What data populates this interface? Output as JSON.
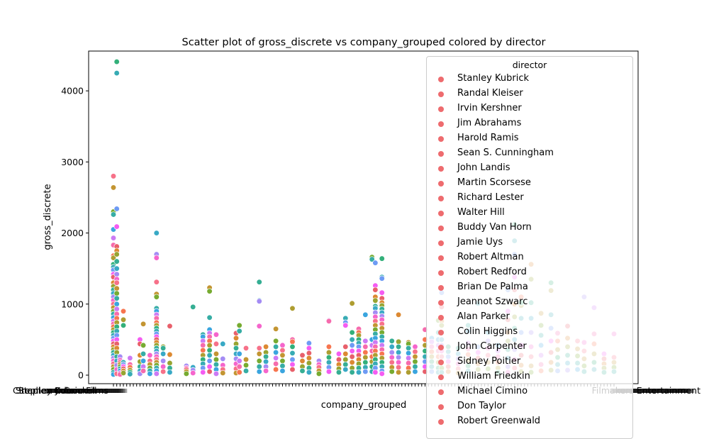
{
  "chart_data": {
    "type": "scatter",
    "title": "Scatter plot of gross_discrete vs company_grouped colored by director",
    "xlabel": "company_grouped",
    "ylabel": "gross_discrete",
    "ylim": [
      -120,
      4560
    ],
    "yticks": [
      0,
      1000,
      2000,
      3000,
      4000
    ],
    "xtick_labels_visible": [
      "Cineplex Odeon Films",
      "Stephen J. Cannell",
      "Stanley Kubrick",
      "Filmakers Entertainment"
    ],
    "grid": false,
    "legend": {
      "title": "director",
      "placement": "upper-right",
      "entries": [
        "Stanley Kubrick",
        "Randal Kleiser",
        "Irvin Kershner",
        "Jim Abrahams",
        "Harold Ramis",
        "Sean S. Cunningham",
        "John Landis",
        "Martin Scorsese",
        "Richard Lester",
        "Walter Hill",
        "Buddy Van Horn",
        "Jamie Uys",
        "Robert Altman",
        "Robert Redford",
        "Brian De Palma",
        "Jeannot Szwarc",
        "Alan Parker",
        "Colin Higgins",
        "John Carpenter",
        "Sidney Poitier",
        "William Friedkin",
        "Michael Cimino",
        "Don Taylor",
        "Robert Greenwald"
      ],
      "marker_color": "#ee6b6e"
    },
    "series": [
      {
        "x": 0,
        "y": [
          2800,
          2640,
          2300,
          2260,
          2050,
          1930,
          1830,
          1680,
          1650,
          1560,
          1520,
          1480,
          1420,
          1380,
          1300,
          1250,
          1200,
          1150,
          1100,
          1050,
          1000,
          950,
          900,
          860,
          810,
          760,
          720,
          680,
          640,
          600,
          560,
          520,
          480,
          440,
          400,
          360,
          320,
          280,
          240,
          200,
          160,
          120,
          80,
          40,
          10
        ]
      },
      {
        "x": 1,
        "y": [
          4410,
          4250,
          2340,
          2090,
          1810,
          1750,
          1700,
          1600,
          1500,
          1420,
          1350,
          1300,
          1220,
          1150,
          1080,
          1000,
          930,
          860,
          800,
          740,
          680,
          620,
          560,
          500,
          440,
          380,
          320,
          260,
          200,
          140,
          80,
          20
        ]
      },
      {
        "x": 2,
        "y": [
          260,
          210,
          180,
          150,
          120,
          90,
          60,
          30,
          10
        ]
      },
      {
        "x": 3,
        "y": [
          900,
          780,
          700,
          180,
          150,
          120,
          90,
          60,
          30
        ]
      },
      {
        "x": 5,
        "y": [
          240,
          150,
          110,
          70,
          40,
          15
        ]
      },
      {
        "x": 8,
        "y": [
          500,
          440,
          280,
          190,
          120,
          60,
          20
        ]
      },
      {
        "x": 9,
        "y": [
          720,
          420,
          300,
          200,
          120,
          60
        ]
      },
      {
        "x": 11,
        "y": [
          280,
          200,
          150,
          100,
          60,
          20
        ]
      },
      {
        "x": 13,
        "y": [
          2000,
          1700,
          1650,
          1310,
          1140,
          1100,
          940,
          900,
          850,
          800,
          740,
          700,
          660,
          620,
          580,
          540,
          500,
          460,
          420,
          380,
          340,
          300,
          260,
          220,
          180,
          140,
          100,
          60,
          20
        ]
      },
      {
        "x": 15,
        "y": [
          400,
          380,
          300,
          200,
          120,
          50
        ]
      },
      {
        "x": 17,
        "y": [
          690,
          290,
          170,
          100,
          40
        ]
      },
      {
        "x": 22,
        "y": [
          130,
          100,
          80,
          50,
          20
        ]
      },
      {
        "x": 24,
        "y": [
          960,
          110,
          70,
          30
        ]
      },
      {
        "x": 27,
        "y": [
          570,
          540,
          480,
          420,
          350,
          280,
          220,
          160,
          100,
          40
        ]
      },
      {
        "x": 29,
        "y": [
          1230,
          1180,
          810,
          640,
          590,
          540,
          480,
          420,
          350,
          280,
          200,
          120,
          50
        ]
      },
      {
        "x": 31,
        "y": [
          570,
          440,
          300,
          220,
          150,
          80,
          20
        ]
      },
      {
        "x": 33,
        "y": [
          440,
          230,
          140,
          80,
          30
        ]
      },
      {
        "x": 37,
        "y": [
          590,
          520,
          440,
          380,
          300,
          230,
          160,
          90,
          30
        ]
      },
      {
        "x": 38,
        "y": [
          700,
          620,
          300,
          200,
          120,
          40
        ]
      },
      {
        "x": 40,
        "y": [
          380,
          220,
          140,
          60
        ]
      },
      {
        "x": 44,
        "y": [
          1310,
          1050,
          1040,
          690,
          380,
          300,
          200,
          120,
          50
        ]
      },
      {
        "x": 46,
        "y": [
          400,
          320,
          260,
          190,
          120,
          60
        ]
      },
      {
        "x": 49,
        "y": [
          650,
          480,
          400,
          320,
          240,
          160,
          80
        ]
      },
      {
        "x": 51,
        "y": [
          420,
          350,
          280,
          200,
          130,
          60
        ]
      },
      {
        "x": 54,
        "y": [
          500,
          470,
          940,
          400,
          310,
          220,
          150,
          80
        ]
      },
      {
        "x": 57,
        "y": [
          280,
          200,
          120,
          60
        ]
      },
      {
        "x": 59,
        "y": [
          450,
          380,
          310,
          240,
          170,
          100,
          40
        ]
      },
      {
        "x": 62,
        "y": [
          200,
          150,
          110,
          60,
          20
        ]
      },
      {
        "x": 65,
        "y": [
          770,
          760,
          400,
          320,
          250,
          180,
          110,
          50
        ]
      },
      {
        "x": 68,
        "y": [
          300,
          220,
          150,
          90,
          40
        ]
      },
      {
        "x": 70,
        "y": [
          800,
          740,
          700,
          400,
          300,
          220,
          150,
          80
        ]
      },
      {
        "x": 72,
        "y": [
          1010,
          600,
          500,
          420,
          340,
          260,
          180,
          100,
          40
        ]
      },
      {
        "x": 74,
        "y": [
          650,
          600,
          560,
          500,
          450,
          400,
          340,
          280,
          220,
          160,
          100,
          40
        ]
      },
      {
        "x": 76,
        "y": [
          850,
          480,
          400,
          320,
          250,
          180,
          110,
          50
        ]
      },
      {
        "x": 78,
        "y": [
          1660,
          1630,
          500,
          420,
          340,
          260,
          190,
          120,
          50
        ]
      },
      {
        "x": 79,
        "y": [
          1580,
          1260,
          1200,
          1100,
          1050,
          970,
          940,
          880,
          820,
          760,
          700,
          640,
          580,
          520,
          460,
          400,
          340,
          280,
          220,
          160,
          100,
          40
        ]
      },
      {
        "x": 81,
        "y": [
          1640,
          1380,
          1360,
          1160,
          1080,
          1020,
          980,
          930,
          880,
          830,
          780,
          720,
          660,
          600,
          540,
          480,
          420,
          360,
          300,
          240,
          180,
          120,
          60,
          20
        ]
      },
      {
        "x": 84,
        "y": [
          480,
          400,
          320,
          250,
          180,
          110,
          50
        ]
      },
      {
        "x": 86,
        "y": [
          850,
          470,
          400,
          320,
          250,
          180,
          110,
          40
        ]
      },
      {
        "x": 89,
        "y": [
          460,
          440,
          380,
          310,
          240,
          170,
          100,
          40
        ]
      },
      {
        "x": 91,
        "y": [
          400,
          330,
          260,
          190,
          120,
          50
        ]
      },
      {
        "x": 94,
        "y": [
          640,
          500,
          420,
          340,
          260,
          190,
          120,
          50
        ]
      },
      {
        "x": 96,
        "y": [
          520,
          470,
          400,
          330,
          260,
          190,
          120,
          50
        ]
      },
      {
        "x": 98,
        "y": [
          770,
          600,
          500,
          420,
          340,
          260,
          180,
          100,
          40
        ]
      },
      {
        "x": 99,
        "y": [
          1160,
          1020,
          960,
          760,
          700,
          600,
          500,
          420,
          340,
          260,
          180,
          100,
          40
        ]
      },
      {
        "x": 101,
        "y": [
          400,
          330,
          260,
          190,
          120,
          50
        ]
      },
      {
        "x": 104,
        "y": [
          380,
          300,
          230,
          160,
          90,
          30
        ]
      },
      {
        "x": 107,
        "y": [
          700,
          620,
          450,
          370,
          290,
          210,
          130,
          60
        ]
      },
      {
        "x": 110,
        "y": [
          1010,
          400,
          320,
          240,
          160,
          80
        ]
      },
      {
        "x": 113,
        "y": [
          600,
          480,
          380,
          280,
          180,
          90
        ]
      },
      {
        "x": 116,
        "y": [
          420,
          340,
          260,
          180,
          100,
          40
        ]
      },
      {
        "x": 119,
        "y": [
          1200,
          900,
          780,
          600,
          480,
          360,
          240,
          120,
          40
        ]
      },
      {
        "x": 121,
        "y": [
          2120,
          1890,
          1700,
          1380,
          1200,
          1000,
          820,
          660,
          500,
          360,
          220,
          100
        ]
      },
      {
        "x": 123,
        "y": [
          1100,
          980,
          1020,
          800,
          600,
          420,
          280,
          140,
          50
        ]
      },
      {
        "x": 126,
        "y": [
          1560,
          1350,
          1020,
          800,
          600,
          400,
          260,
          130,
          40
        ]
      },
      {
        "x": 129,
        "y": [
          870,
          700,
          560,
          420,
          280,
          150,
          60
        ]
      },
      {
        "x": 132,
        "y": [
          1190,
          1300,
          850,
          660,
          480,
          320,
          180,
          70
        ]
      },
      {
        "x": 134,
        "y": [
          590,
          480,
          360,
          250,
          150,
          60
        ]
      },
      {
        "x": 137,
        "y": [
          690,
          520,
          400,
          280,
          170,
          70
        ]
      },
      {
        "x": 140,
        "y": [
          480,
          370,
          270,
          170,
          80
        ]
      },
      {
        "x": 142,
        "y": [
          1100,
          460,
          340,
          230,
          130,
          50
        ]
      },
      {
        "x": 145,
        "y": [
          950,
          580,
          440,
          300,
          180,
          80
        ]
      },
      {
        "x": 148,
        "y": [
          300,
          230,
          160,
          100,
          40
        ]
      },
      {
        "x": 151,
        "y": [
          580,
          250,
          180,
          110,
          50
        ]
      }
    ]
  }
}
